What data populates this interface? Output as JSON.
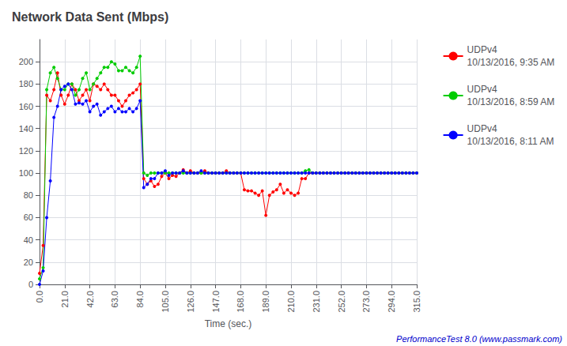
{
  "chart_data": {
    "type": "line",
    "title": "Network Data Sent (Mbps)",
    "xlabel": "Time (sec.)",
    "annotations": [
      "PerformanceTest 8.0 (www.passmark.com)"
    ],
    "xlim": [
      0,
      315
    ],
    "ylim": [
      0,
      220
    ],
    "xticks": [
      {
        "value": 0,
        "label": "0.0"
      },
      {
        "value": 21,
        "label": "21.0"
      },
      {
        "value": 42,
        "label": "42.0"
      },
      {
        "value": 63,
        "label": "63.0"
      },
      {
        "value": 84,
        "label": "84.0"
      },
      {
        "value": 105,
        "label": "105.0"
      },
      {
        "value": 126,
        "label": "126.0"
      },
      {
        "value": 147,
        "label": "147.0"
      },
      {
        "value": 168,
        "label": "168.0"
      },
      {
        "value": 189,
        "label": "189.0"
      },
      {
        "value": 210,
        "label": "210.0"
      },
      {
        "value": 231,
        "label": "231.0"
      },
      {
        "value": 252,
        "label": "252.0"
      },
      {
        "value": 273,
        "label": "273.0"
      },
      {
        "value": 294,
        "label": "294.0"
      },
      {
        "value": 315,
        "label": "315.0"
      }
    ],
    "yticks": [
      0,
      20,
      40,
      60,
      80,
      100,
      120,
      140,
      160,
      180,
      200
    ],
    "grid": true,
    "legend": "right",
    "marker": "circle",
    "line_style": "solid",
    "x": [
      0,
      3,
      6,
      9,
      12,
      15,
      18,
      21,
      24,
      27,
      30,
      33,
      36,
      39,
      42,
      45,
      48,
      51,
      54,
      57,
      60,
      63,
      66,
      69,
      72,
      75,
      78,
      81,
      84,
      87,
      90,
      93,
      96,
      99,
      102,
      105,
      108,
      111,
      114,
      117,
      120,
      123,
      126,
      129,
      132,
      135,
      138,
      141,
      144,
      147,
      150,
      153,
      156,
      159,
      162,
      165,
      168,
      171,
      174,
      177,
      180,
      183,
      186,
      189,
      192,
      195,
      198,
      201,
      204,
      207,
      210,
      213,
      216,
      219,
      222,
      225,
      228,
      231,
      234,
      237,
      240,
      243,
      246,
      249,
      252,
      255,
      258,
      261,
      264,
      267,
      270,
      273,
      276,
      279,
      282,
      285,
      288,
      291,
      294,
      297,
      300,
      303,
      306,
      309,
      312,
      315
    ],
    "series": [
      {
        "name": "UDPv4\n10/13/2016, 9:35 AM",
        "color": "#FF0000",
        "values": [
          10,
          35,
          170,
          165,
          175,
          190,
          170,
          162,
          170,
          180,
          175,
          165,
          170,
          175,
          165,
          180,
          178,
          175,
          180,
          175,
          170,
          170,
          165,
          160,
          165,
          170,
          172,
          175,
          180,
          95,
          90,
          93,
          88,
          90,
          97,
          100,
          95,
          98,
          97,
          100,
          103,
          100,
          102,
          100,
          100,
          100,
          102,
          100,
          100,
          100,
          100,
          100,
          102,
          100,
          100,
          100,
          100,
          85,
          84,
          84,
          82,
          80,
          84,
          62,
          80,
          83,
          85,
          90,
          82,
          85,
          82,
          80,
          82,
          95,
          95,
          100,
          100,
          100,
          100,
          100,
          100,
          100,
          100,
          100,
          100,
          100,
          100,
          100,
          100,
          100,
          100,
          100,
          100,
          100,
          100,
          100,
          100,
          100,
          100,
          100,
          100,
          100,
          100,
          100,
          100,
          100
        ]
      },
      {
        "name": "UDPv4\n10/13/2016, 8:59 AM",
        "color": "#00CC00",
        "values": [
          5,
          15,
          175,
          190,
          195,
          185,
          175,
          175,
          180,
          180,
          170,
          175,
          185,
          190,
          175,
          180,
          185,
          190,
          195,
          195,
          200,
          198,
          192,
          192,
          195,
          192,
          190,
          195,
          205,
          100,
          98,
          100,
          100,
          100,
          100,
          100,
          100,
          100,
          100,
          100,
          100,
          100,
          100,
          100,
          100,
          100,
          100,
          100,
          100,
          100,
          100,
          100,
          100,
          100,
          100,
          100,
          100,
          100,
          100,
          100,
          100,
          100,
          100,
          100,
          100,
          100,
          100,
          100,
          100,
          100,
          100,
          100,
          100,
          100,
          102,
          103,
          100,
          100,
          100,
          100,
          100,
          100,
          100,
          100,
          100,
          100,
          100,
          100,
          100,
          100,
          100,
          100,
          100,
          100,
          100,
          100,
          100,
          100,
          100,
          100,
          100,
          100,
          100,
          100,
          100,
          100
        ]
      },
      {
        "name": "UDPv4\n10/13/2016, 8:11 AM",
        "color": "#0000FF",
        "values": [
          0,
          12,
          60,
          93,
          150,
          160,
          175,
          178,
          180,
          175,
          162,
          163,
          162,
          165,
          155,
          160,
          162,
          152,
          155,
          158,
          160,
          155,
          158,
          155,
          155,
          158,
          155,
          158,
          165,
          87,
          90,
          95,
          95,
          100,
          100,
          102,
          98,
          100,
          100,
          100,
          102,
          100,
          100,
          100,
          100,
          102,
          100,
          100,
          100,
          100,
          100,
          100,
          100,
          100,
          100,
          100,
          100,
          100,
          100,
          100,
          100,
          100,
          100,
          100,
          100,
          100,
          100,
          100,
          100,
          100,
          100,
          100,
          100,
          100,
          100,
          100,
          100,
          100,
          100,
          100,
          100,
          100,
          100,
          100,
          100,
          100,
          100,
          100,
          100,
          100,
          100,
          100,
          100,
          100,
          100,
          100,
          100,
          100,
          100,
          100,
          100,
          100,
          100,
          100,
          100,
          100
        ]
      }
    ]
  }
}
